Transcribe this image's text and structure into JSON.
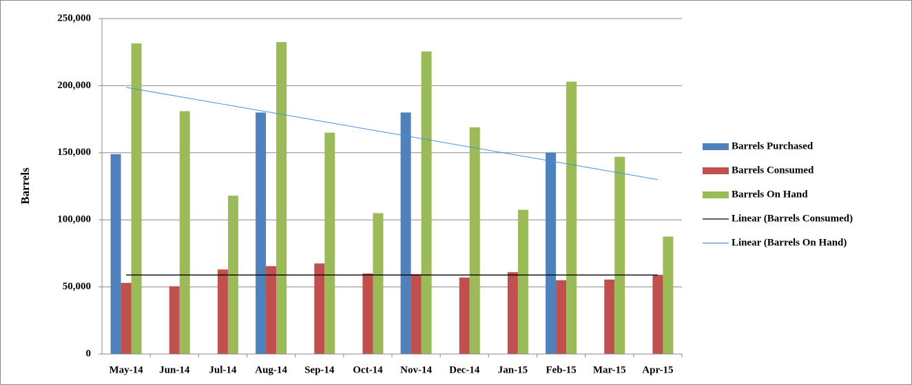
{
  "chart_data": {
    "type": "bar",
    "y_label": "Barrels",
    "categories": [
      "May-14",
      "Jun-14",
      "Jul-14",
      "Aug-14",
      "Sep-14",
      "Oct-14",
      "Nov-14",
      "Dec-14",
      "Jan-15",
      "Feb-15",
      "Mar-15",
      "Apr-15"
    ],
    "series": [
      {
        "name": "Barrels Purchased",
        "color": "#4f81bd",
        "values": [
          149000,
          0,
          0,
          180000,
          0,
          0,
          180000,
          0,
          0,
          150000,
          0,
          0
        ]
      },
      {
        "name": "Barrels Consumed",
        "color": "#c0504d",
        "values": [
          53000,
          50500,
          63000,
          65500,
          67500,
          60000,
          59500,
          57000,
          61000,
          55000,
          55500,
          59000
        ],
        "trendline": {
          "name": "Linear (Barrels Consumed)",
          "color": "#000000"
        }
      },
      {
        "name": "Barrels On Hand",
        "color": "#9bbb59",
        "values": [
          231500,
          181000,
          118000,
          232500,
          165000,
          105000,
          225500,
          169000,
          107500,
          203000,
          147000,
          87500
        ],
        "trendline": {
          "name": "Linear (Barrels On Hand)",
          "color": "#4a90d9"
        }
      }
    ],
    "ylim": [
      0,
      250000
    ],
    "yticks": [
      0,
      {
        "value": 50000,
        "label": "50,000"
      },
      {
        "value": 100000,
        "label": "100,000"
      },
      {
        "value": 150000,
        "label": "150,000"
      },
      {
        "value": 200000,
        "label": "200,000"
      },
      {
        "value": 250000,
        "label": "250,000"
      }
    ],
    "grid": true,
    "legend": "right"
  }
}
